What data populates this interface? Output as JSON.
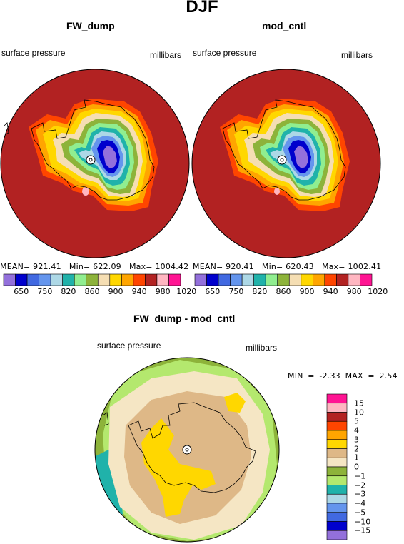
{
  "title": "DJF",
  "panels": [
    {
      "name": "FW_dump",
      "left_label": "surface pressure",
      "right_label": "millibars",
      "stats": {
        "mean_label": "MEAN=",
        "mean": "921.41",
        "min_label": "Min=",
        "min": "622.09",
        "max_label": "Max=",
        "max": "1004.42"
      }
    },
    {
      "name": "mod_cntl",
      "left_label": "surface pressure",
      "right_label": "millibars",
      "stats": {
        "mean_label": "MEAN=",
        "mean": "920.41",
        "min_label": "Min=",
        "min": "620.43",
        "max_label": "Max=",
        "max": "1002.41"
      }
    }
  ],
  "pressure_colorbar": {
    "labels": [
      "650",
      "750",
      "820",
      "860",
      "900",
      "940",
      "980",
      "1020"
    ],
    "colors": [
      "#9370db",
      "#0000cd",
      "#4169e1",
      "#6495ed",
      "#add8e6",
      "#20b2aa",
      "#90ee90",
      "#8db33a",
      "#f5deb3",
      "#ffd700",
      "#ffa500",
      "#ff4500",
      "#b22222",
      "#ffb6c1",
      "#ff1493"
    ]
  },
  "diff_panel": {
    "title": "FW_dump - mod_cntl",
    "left_label": "surface pressure",
    "right_label": "millibars",
    "stats": {
      "min_label": "MIN =",
      "min": "-2.33",
      "max_label": "MAX =",
      "max": "2.54"
    },
    "colorbar": {
      "labels": [
        "15",
        "10",
        "5",
        "4",
        "3",
        "2",
        "1",
        "0",
        "−1",
        "−2",
        "−3",
        "−4",
        "−5",
        "−10",
        "−15"
      ],
      "colors": [
        "#ff1493",
        "#ffb6c1",
        "#b22222",
        "#ff4500",
        "#ffa500",
        "#ffd700",
        "#deb887",
        "#f5e6c4",
        "#8db33a",
        "#b4e86e",
        "#20b2aa",
        "#add8e6",
        "#6495ed",
        "#4169e1",
        "#0000cd",
        "#9370db"
      ]
    }
  }
}
